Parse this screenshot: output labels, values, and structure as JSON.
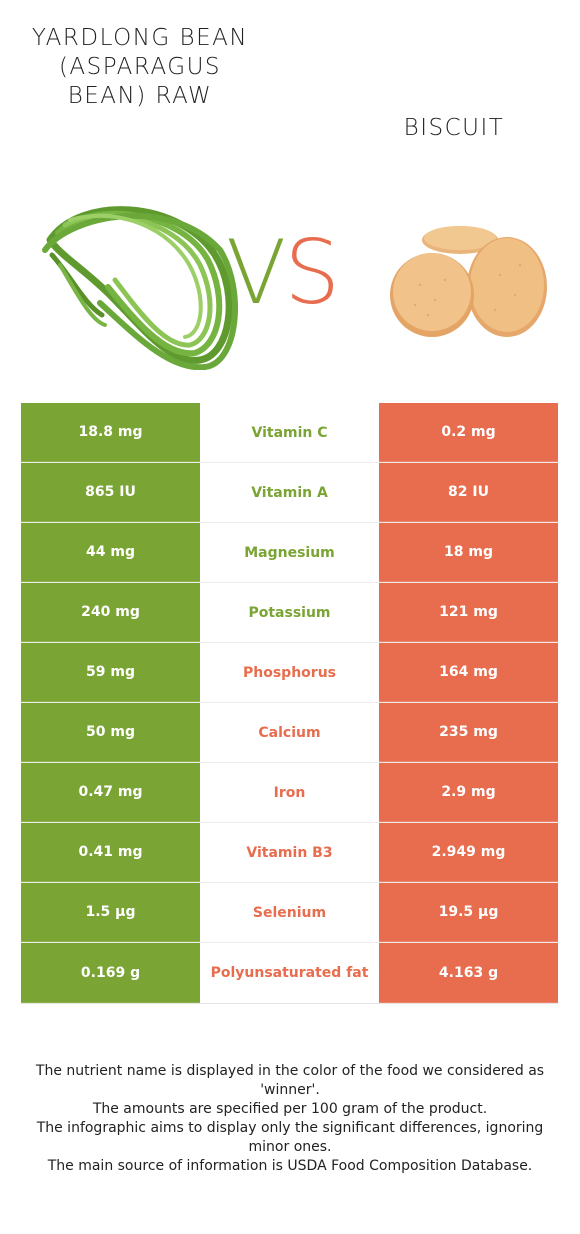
{
  "left_food": {
    "title": "YARDLONG BEAN (ASPARAGUS BEAN) RAW",
    "color": "#7aa433"
  },
  "right_food": {
    "title": "BISCUIT",
    "color": "#e86c4e"
  },
  "vs": {
    "v": "V",
    "s": "S"
  },
  "nutrients": [
    {
      "left": "18.8 mg",
      "name": "Vitamin C",
      "right": "0.2 mg",
      "winner": "left"
    },
    {
      "left": "865 IU",
      "name": "Vitamin A",
      "right": "82 IU",
      "winner": "left"
    },
    {
      "left": "44 mg",
      "name": "Magnesium",
      "right": "18 mg",
      "winner": "left"
    },
    {
      "left": "240 mg",
      "name": "Potassium",
      "right": "121 mg",
      "winner": "left"
    },
    {
      "left": "59 mg",
      "name": "Phosphorus",
      "right": "164 mg",
      "winner": "right"
    },
    {
      "left": "50 mg",
      "name": "Calcium",
      "right": "235 mg",
      "winner": "right"
    },
    {
      "left": "0.47 mg",
      "name": "Iron",
      "right": "2.9 mg",
      "winner": "right"
    },
    {
      "left": "0.41 mg",
      "name": "Vitamin B3",
      "right": "2.949 mg",
      "winner": "right"
    },
    {
      "left": "1.5 µg",
      "name": "Selenium",
      "right": "19.5 µg",
      "winner": "right"
    },
    {
      "left": "0.169 g",
      "name": "Polyunsaturated fat",
      "right": "4.163 g",
      "winner": "right"
    }
  ],
  "footer": {
    "line1": "The nutrient name is displayed in the color of the food we considered as 'winner'.",
    "line2": "The amounts are specified per 100 gram of the product.",
    "line3": "The infographic aims to display only the significant differences, ignoring minor ones.",
    "line4": "The main source of information is USDA Food Composition Database."
  }
}
